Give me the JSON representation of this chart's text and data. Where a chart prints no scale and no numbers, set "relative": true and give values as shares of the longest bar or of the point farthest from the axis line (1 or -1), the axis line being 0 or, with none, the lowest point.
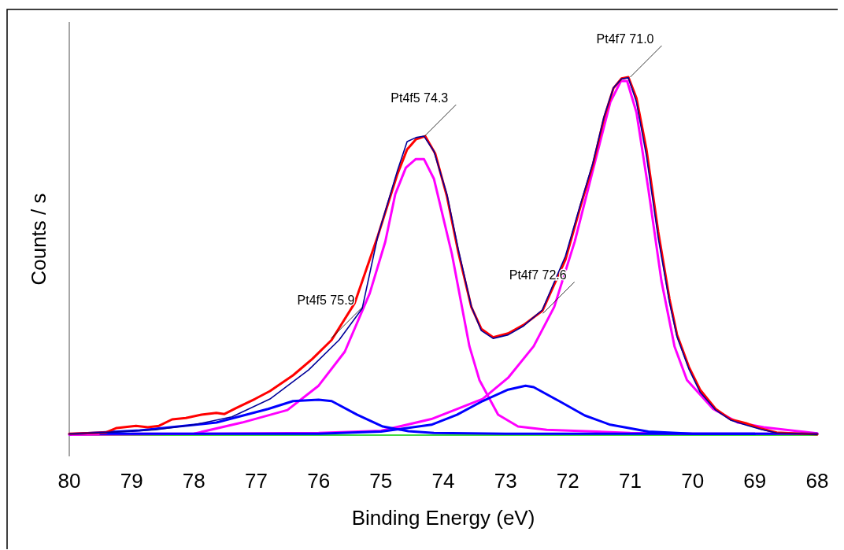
{
  "chart_data": {
    "type": "line",
    "relative": true,
    "xlabel": "Binding Energy (eV)",
    "ylabel": "Counts / s",
    "xlim": [
      80,
      68
    ],
    "xticks": [
      80,
      79,
      78,
      77,
      76,
      75,
      74,
      73,
      72,
      71,
      70,
      69,
      68
    ],
    "grid": false,
    "marker": "none",
    "line_style": "solid",
    "annotations": [
      {
        "text": "Pt4f7 71.0",
        "x": 71.0,
        "y": 1.0
      },
      {
        "text": "Pt4f5 74.3",
        "x": 74.3,
        "y": 0.835
      },
      {
        "text": "Pt4f7 72.6",
        "x": 72.4,
        "y": 0.34
      },
      {
        "text": "Pt4f5 75.9",
        "x": 75.8,
        "y": 0.27
      }
    ],
    "series": [
      {
        "color": "#00cc00",
        "x": [
          80,
          68
        ],
        "values": [
          0,
          0
        ]
      },
      {
        "color": "#ff00ff",
        "x": [
          80,
          78,
          77.23,
          76.5,
          76.0,
          75.58,
          75.18,
          74.93,
          74.77,
          74.6,
          74.44,
          74.31,
          74.15,
          74.03,
          73.86,
          73.58,
          73.42,
          73.12,
          72.8,
          72.34,
          71,
          70,
          68
        ],
        "values": [
          0.001,
          0.004,
          0.035,
          0.07,
          0.138,
          0.233,
          0.396,
          0.54,
          0.673,
          0.747,
          0.771,
          0.771,
          0.716,
          0.629,
          0.505,
          0.248,
          0.154,
          0.057,
          0.024,
          0.015,
          0.006,
          0.004,
          0.004
        ]
      },
      {
        "color": "#ff00ff",
        "x": [
          79,
          78,
          76,
          75,
          74.19,
          73.78,
          73.37,
          72.96,
          72.55,
          72.22,
          71.89,
          71.57,
          71.32,
          71.15,
          71.05,
          70.9,
          70.71,
          70.5,
          70.29,
          70.09,
          69.67,
          69.27,
          68.86,
          68
        ],
        "values": [
          0.004,
          0.004,
          0.006,
          0.012,
          0.045,
          0.073,
          0.101,
          0.16,
          0.248,
          0.358,
          0.541,
          0.76,
          0.93,
          0.989,
          0.989,
          0.901,
          0.688,
          0.431,
          0.248,
          0.154,
          0.073,
          0.035,
          0.022,
          0.005
        ]
      },
      {
        "color": "#0000ff",
        "x": [
          80,
          78.87,
          77.64,
          76.81,
          76.41,
          76.0,
          75.79,
          75.38,
          74.97,
          74.56,
          74.15,
          73,
          69
        ],
        "values": [
          0.003,
          0.013,
          0.035,
          0.073,
          0.095,
          0.099,
          0.095,
          0.057,
          0.024,
          0.011,
          0.006,
          0.004,
          0.004
        ]
      },
      {
        "color": "#0000ff",
        "x": [
          79.5,
          76,
          75,
          74.19,
          73.78,
          73.37,
          72.96,
          72.68,
          72.55,
          72.14,
          71.73,
          71.32,
          70.71,
          70,
          68
        ],
        "values": [
          0.004,
          0.004,
          0.01,
          0.029,
          0.057,
          0.095,
          0.127,
          0.138,
          0.134,
          0.095,
          0.055,
          0.029,
          0.01,
          0.004,
          0.004
        ]
      },
      {
        "color": "#ff0000",
        "x": [
          80,
          79.42,
          79.24,
          78.93,
          78.74,
          78.56,
          78.35,
          78.13,
          77.88,
          77.64,
          77.51,
          77.33,
          77.02,
          76.78,
          76.41,
          76.1,
          75.79,
          75.42,
          75.05,
          74.74,
          74.58,
          74.44,
          74.29,
          74.13,
          73.94,
          73.76,
          73.55,
          73.39,
          73.2,
          72.96,
          72.71,
          72.41,
          72.04,
          71.79,
          71.6,
          71.42,
          71.27,
          71.14,
          71.03,
          70.9,
          70.74,
          70.55,
          70.37,
          70.25,
          70.06,
          69.88,
          69.63,
          69.39,
          69.14,
          68.9,
          68.65,
          68
        ],
        "values": [
          0.004,
          0.007,
          0.02,
          0.026,
          0.022,
          0.026,
          0.044,
          0.048,
          0.057,
          0.062,
          0.059,
          0.075,
          0.101,
          0.123,
          0.167,
          0.213,
          0.266,
          0.369,
          0.556,
          0.727,
          0.798,
          0.826,
          0.835,
          0.787,
          0.666,
          0.512,
          0.358,
          0.297,
          0.273,
          0.284,
          0.308,
          0.347,
          0.49,
          0.644,
          0.754,
          0.886,
          0.969,
          0.996,
          1.0,
          0.941,
          0.798,
          0.567,
          0.38,
          0.281,
          0.191,
          0.127,
          0.073,
          0.044,
          0.033,
          0.018,
          0.007,
          0.002
        ]
      },
      {
        "color": "#000099",
        "x": [
          80,
          79.24,
          78.62,
          78,
          77.39,
          76.78,
          76.16,
          75.67,
          75.3,
          75.05,
          74.74,
          74.58,
          74.44,
          74.31,
          74.15,
          73.94,
          73.76,
          73.55,
          73.39,
          73.2,
          72.96,
          72.71,
          72.41,
          72.04,
          71.79,
          71.6,
          71.42,
          71.27,
          71.14,
          71.03,
          70.9,
          70.74,
          70.55,
          70.37,
          70.25,
          70.06,
          69.88,
          69.63,
          69.39,
          69.14,
          68.9,
          68.65,
          68
        ],
        "values": [
          0.004,
          0.009,
          0.015,
          0.029,
          0.051,
          0.101,
          0.182,
          0.266,
          0.354,
          0.556,
          0.736,
          0.82,
          0.831,
          0.835,
          0.793,
          0.672,
          0.52,
          0.36,
          0.292,
          0.27,
          0.28,
          0.305,
          0.35,
          0.5,
          0.65,
          0.76,
          0.89,
          0.97,
          0.995,
          0.998,
          0.93,
          0.78,
          0.55,
          0.37,
          0.275,
          0.185,
          0.12,
          0.07,
          0.042,
          0.028,
          0.016,
          0.006,
          0.002
        ]
      }
    ]
  }
}
